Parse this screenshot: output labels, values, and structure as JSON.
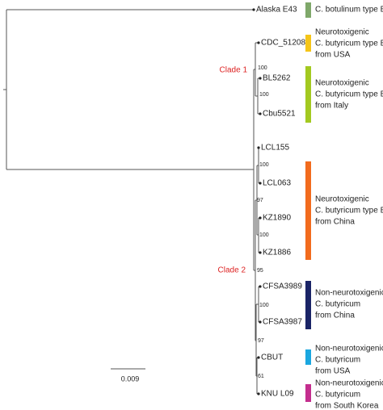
{
  "tree": {
    "leaves": [
      "Alaska E43",
      "CDC_51208",
      "BL5262",
      "Cbu5521",
      "LCL155",
      "LCL063",
      "KZ1890",
      "KZ1886",
      "CFSA3989",
      "CFSA3987",
      "CBUT",
      "KNU L09"
    ],
    "bootstrap": [
      "100",
      "100",
      "100",
      "97",
      "100",
      "95",
      "100",
      "97",
      "61"
    ],
    "clades": [
      "Clade 1",
      "Clade 2"
    ],
    "scale": "0.009"
  },
  "groups": [
    {
      "lines": [
        "C. botulinum type E"
      ],
      "color": "#7fa86a"
    },
    {
      "lines": [
        "Neurotoxigenic",
        "C. butyricum type E",
        "from USA"
      ],
      "color": "#f5c518"
    },
    {
      "lines": [
        "Neurotoxigenic",
        "C. butyricum type E",
        "from Italy"
      ],
      "color": "#a3c920"
    },
    {
      "lines": [
        "Neurotoxigenic",
        "C. butyricum type E",
        "from China"
      ],
      "color": "#f26b1d"
    },
    {
      "lines": [
        "Non-neurotoxigenic",
        "C. butyricum",
        "from China"
      ],
      "color": "#1a2466"
    },
    {
      "lines": [
        "Non-neurotoxigenic",
        "C. butyricum",
        "from USA"
      ],
      "color": "#1aa7e0"
    },
    {
      "lines": [
        "Non-neurotoxigenic",
        "C. butyricum",
        "from South Korea"
      ],
      "color": "#c42e8e"
    }
  ]
}
